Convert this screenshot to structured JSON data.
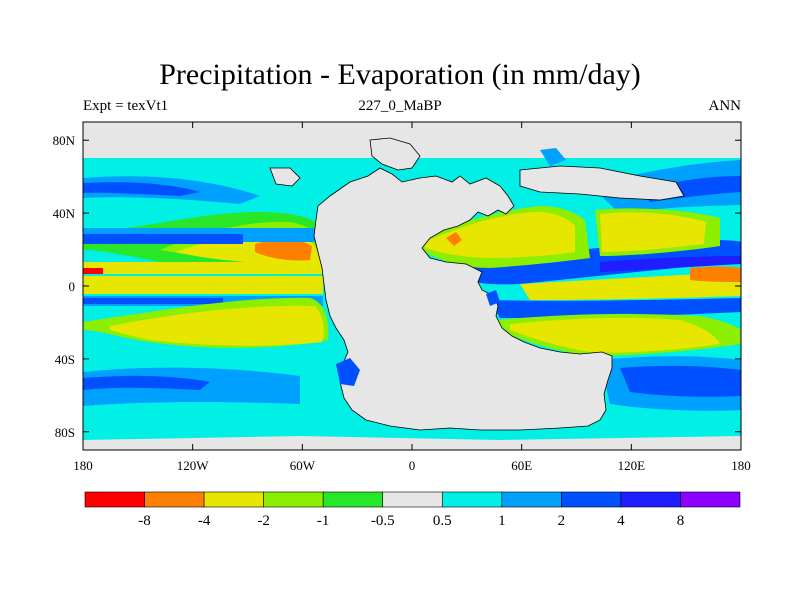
{
  "title": "Precipitation - Evaporation (in mm/day)",
  "subtitle_left": "Expt = texVt1",
  "subtitle_center": "227_0_MaBP",
  "subtitle_right": "ANN",
  "map": {
    "lon_range": [
      -180,
      180
    ],
    "lat_range": [
      -90,
      90
    ],
    "x_tick_labels": [
      "180",
      "120W",
      "60W",
      "0",
      "60E",
      "120E",
      "180"
    ],
    "x_tick_values": [
      -180,
      -120,
      -60,
      0,
      60,
      120,
      180
    ],
    "y_tick_labels": [
      "80N",
      "40N",
      "0",
      "40S",
      "80S"
    ],
    "y_tick_values": [
      80,
      40,
      0,
      -40,
      -80
    ]
  },
  "colorbar": {
    "colors": [
      "#ff0000",
      "#ff8000",
      "#e6e600",
      "#8cee00",
      "#28e628",
      "#e6e6e6",
      "#00f0e6",
      "#00a0ff",
      "#0050ff",
      "#1e1eff",
      "#8c00ff"
    ],
    "labels": [
      "-8",
      "-4",
      "-2",
      "-1",
      "-0.5",
      "0.5",
      "1",
      "2",
      "4",
      "8"
    ]
  },
  "palette": {
    "land": "#e6e6e6",
    "light_cyan": "#00f0e6",
    "sky_blue": "#00a0ff",
    "blue": "#0050ff",
    "dark_blue": "#1e1eff",
    "green": "#28e628",
    "light_green": "#8cee00",
    "yellow": "#e6e600",
    "orange": "#ff8000"
  }
}
